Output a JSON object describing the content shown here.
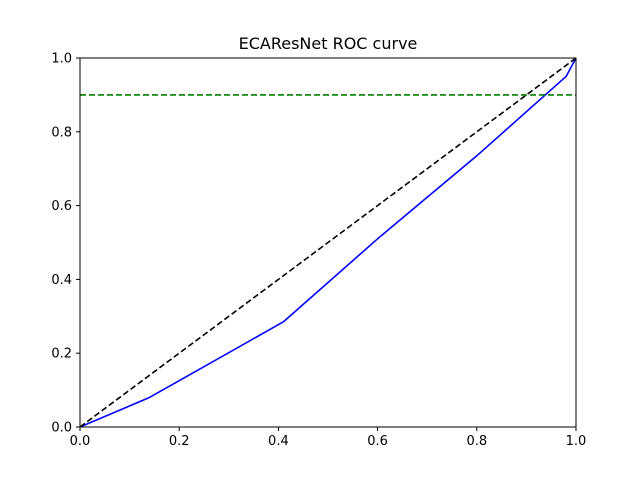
{
  "chart_data": {
    "type": "line",
    "title": "ECAResNet ROC curve",
    "xlabel": "",
    "ylabel": "",
    "xlim": [
      0.0,
      1.0
    ],
    "ylim": [
      0.0,
      1.0
    ],
    "x_ticks": [
      0.0,
      0.2,
      0.4,
      0.6,
      0.8,
      1.0
    ],
    "y_ticks": [
      0.0,
      0.2,
      0.4,
      0.6,
      0.8,
      1.0
    ],
    "x_tick_labels": [
      "0.0",
      "0.2",
      "0.4",
      "0.6",
      "0.8",
      "1.0"
    ],
    "y_tick_labels": [
      "0.0",
      "0.2",
      "0.4",
      "0.6",
      "0.8",
      "1.0"
    ],
    "grid": false,
    "legend": "none",
    "series": [
      {
        "color": "#0000ff",
        "style": "solid",
        "points": [
          [
            0.0,
            0.0
          ],
          [
            0.14,
            0.08
          ],
          [
            0.41,
            0.285
          ],
          [
            0.6,
            0.51
          ],
          [
            0.8,
            0.735
          ],
          [
            0.98,
            0.95
          ],
          [
            1.0,
            1.0
          ]
        ]
      },
      {
        "color": "#000000",
        "style": "dashed",
        "points": [
          [
            0.0,
            0.0
          ],
          [
            1.0,
            1.0
          ]
        ]
      },
      {
        "color": "#008000",
        "style": "dashed",
        "points": [
          [
            0.0,
            0.9
          ],
          [
            1.0,
            0.9
          ]
        ]
      }
    ]
  }
}
